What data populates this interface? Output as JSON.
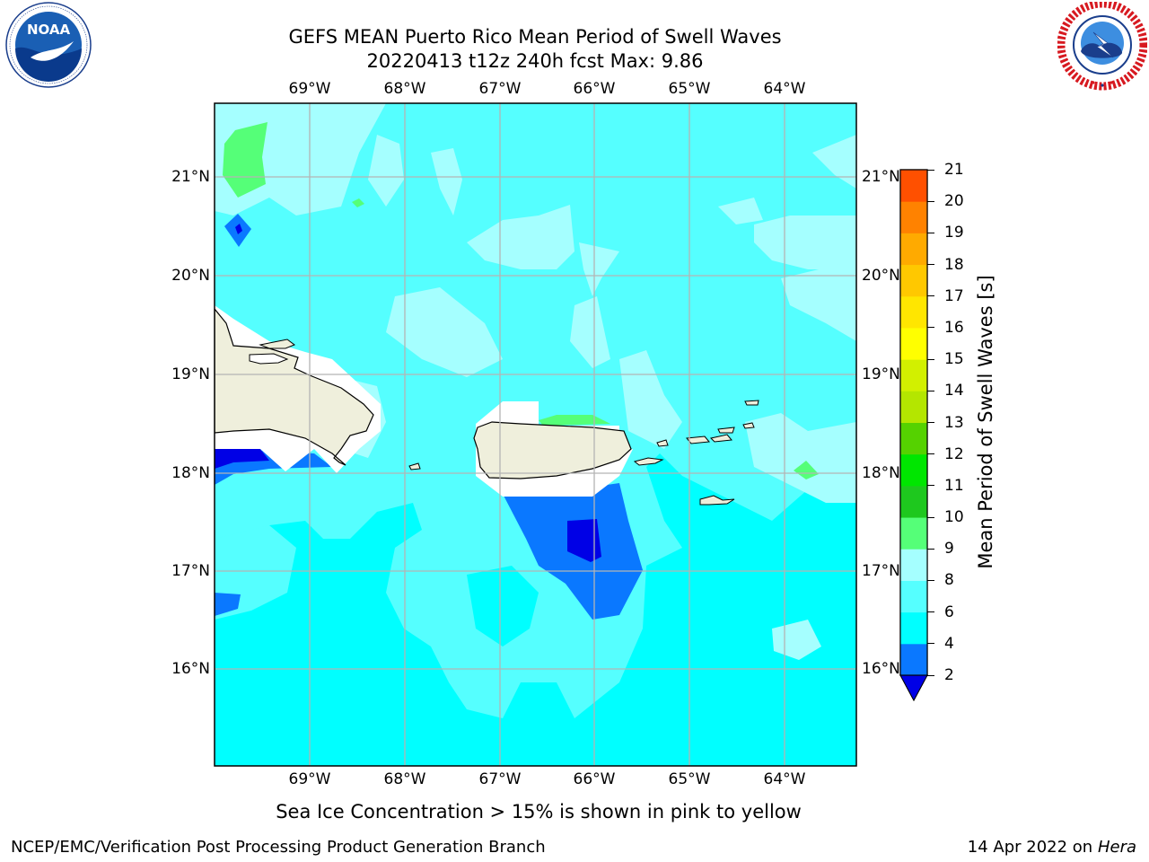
{
  "header": {
    "title_line1": "GEFS MEAN Puerto Rico Mean Period of Swell Waves",
    "title_line2": "20220413 t12z 240h fcst   Max: 9.86"
  },
  "logos": {
    "left": {
      "name": "noaa-logo",
      "text": "NOAA",
      "ring_text": "NATIONAL OCEANIC AND ATMOSPHERIC ADMINISTRATION · U.S. DEPARTMENT OF COMMERCE"
    },
    "right": {
      "name": "nws-logo",
      "ring_text": "NATIONAL WEATHER SERVICE"
    }
  },
  "map": {
    "lon_ticks": [
      "69°W",
      "68°W",
      "67°W",
      "66°W",
      "65°W",
      "64°W"
    ],
    "lat_ticks": [
      "21°N",
      "20°N",
      "19°N",
      "18°N",
      "17°N",
      "16°N"
    ]
  },
  "colorbar": {
    "label": "Mean Period of Swell Waves [s]",
    "ticks": [
      "2",
      "4",
      "6",
      "8",
      "9",
      "10",
      "11",
      "12",
      "13",
      "14",
      "15",
      "16",
      "17",
      "18",
      "19",
      "20",
      "21"
    ],
    "colors": [
      "#0000e6",
      "#0a78ff",
      "#00ffff",
      "#55ffff",
      "#a5ffff",
      "#55ff78",
      "#1ec81e",
      "#00e600",
      "#55d200",
      "#b4e600",
      "#d2f000",
      "#ffff00",
      "#ffe600",
      "#ffc800",
      "#ffaa00",
      "#ff8200",
      "#ff5000",
      "#ff1e00",
      "#ff0000"
    ]
  },
  "note": "Sea Ice Concentration > 15% is shown in pink to yellow",
  "footer": {
    "left": "NCEP/EMC/Verification Post Processing Product Generation Branch",
    "date": "14 Apr 2022 on",
    "machine": "Hera"
  }
}
